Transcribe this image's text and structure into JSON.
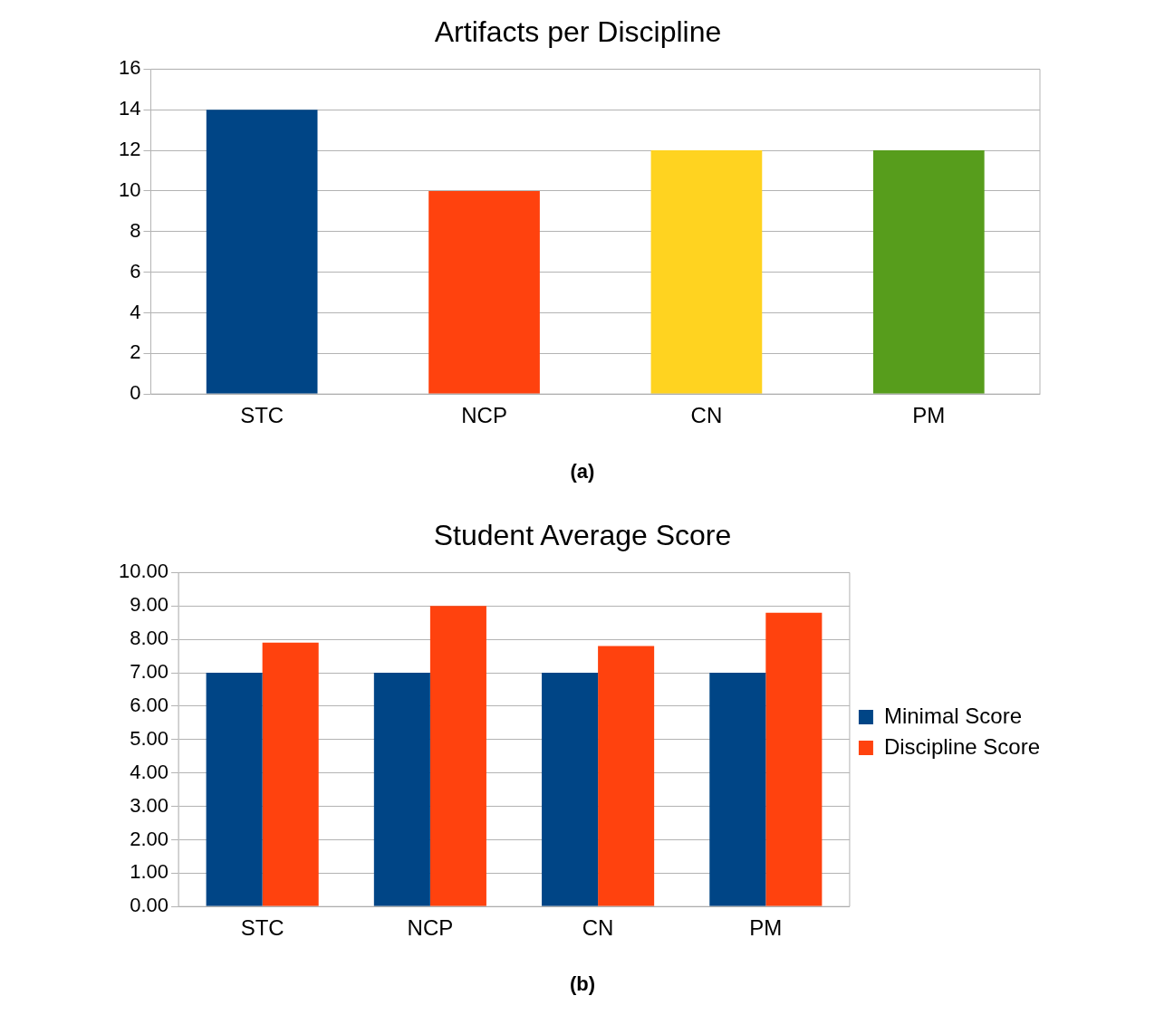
{
  "chart_data": [
    {
      "type": "bar",
      "title": "Artifacts per Discipline",
      "categories": [
        "STC",
        "NCP",
        "CN",
        "PM"
      ],
      "values": [
        14,
        10,
        12,
        12
      ],
      "colors": [
        "#004586",
        "#ff420e",
        "#ffd320",
        "#579d1c"
      ],
      "ylim": [
        0,
        16
      ],
      "yticks": [
        0,
        2,
        4,
        6,
        8,
        10,
        12,
        14,
        16
      ],
      "grid": "y",
      "legend": false,
      "annotations": [
        "(a)"
      ]
    },
    {
      "type": "bar",
      "title": "Student Average Score",
      "categories": [
        "STC",
        "NCP",
        "CN",
        "PM"
      ],
      "series": [
        {
          "name": "Minimal Score",
          "color": "#004586",
          "values": [
            7,
            7,
            7,
            7
          ]
        },
        {
          "name": "Discipline Score",
          "color": "#ff420e",
          "values": [
            7.9,
            9.0,
            7.8,
            8.8
          ]
        }
      ],
      "ylim": [
        0,
        10
      ],
      "yticks": [
        {
          "value": 0,
          "label": "0.00"
        },
        {
          "value": 1,
          "label": "1.00"
        },
        {
          "value": 2,
          "label": "2.00"
        },
        {
          "value": 3,
          "label": "3.00"
        },
        {
          "value": 4,
          "label": "4.00"
        },
        {
          "value": 5,
          "label": "5.00"
        },
        {
          "value": 6,
          "label": "6.00"
        },
        {
          "value": 7,
          "label": "7.00"
        },
        {
          "value": 8,
          "label": "8.00"
        },
        {
          "value": 9,
          "label": "9.00"
        },
        {
          "value": 10,
          "label": "10.00"
        }
      ],
      "grid": "y",
      "legend": "right",
      "annotations": [
        "(b)"
      ]
    }
  ]
}
